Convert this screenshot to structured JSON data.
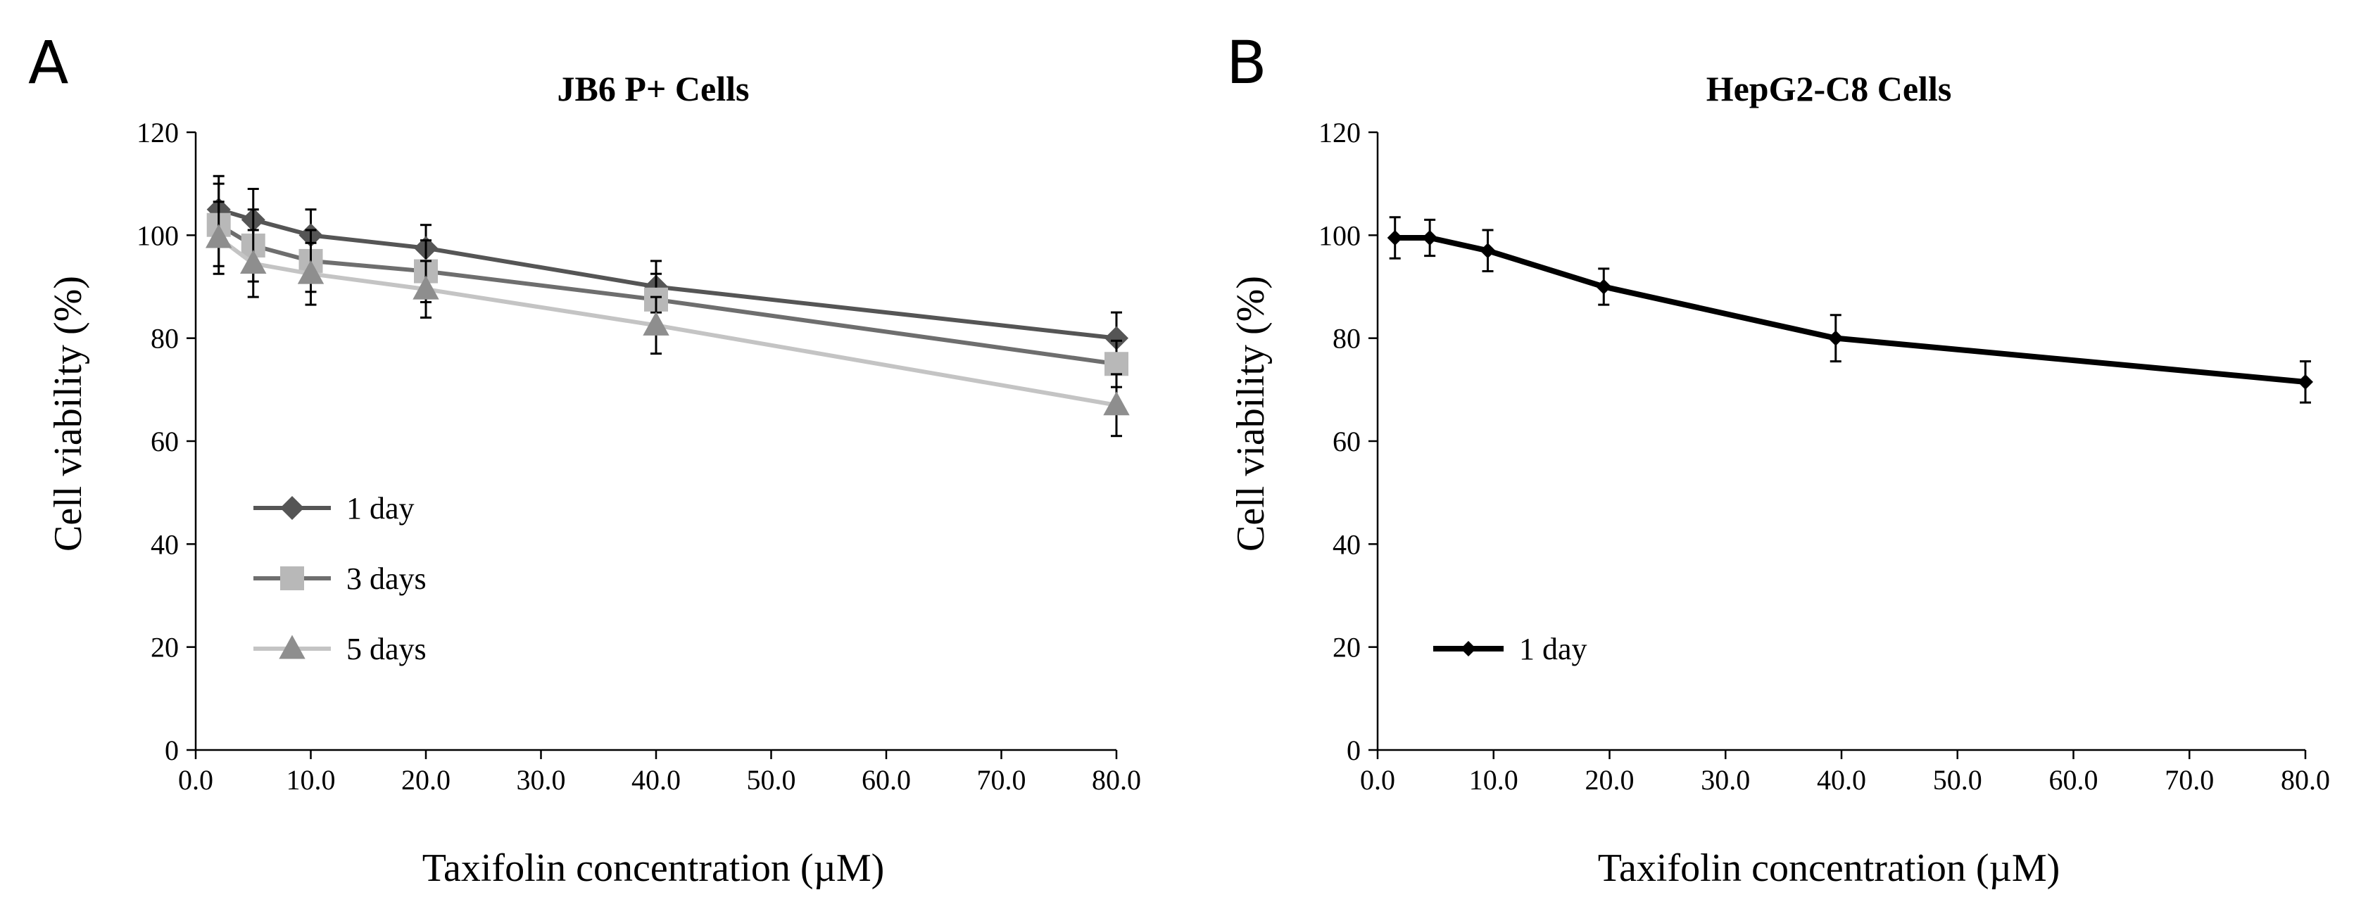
{
  "panels": [
    {
      "letter": "A"
    },
    {
      "letter": "B"
    }
  ],
  "chart_data": [
    {
      "type": "line",
      "title": "JB6 P+ Cells",
      "xlabel": "Taxifolin concentration (µM)",
      "ylabel": "Cell  viability (%)",
      "xlim": [
        0,
        80
      ],
      "ylim": [
        0,
        120
      ],
      "xticks": [
        0,
        10,
        20,
        30,
        40,
        50,
        60,
        70,
        80
      ],
      "xtick_labels": [
        "0.0",
        "10.0",
        "20.0",
        "30.0",
        "40.0",
        "50.0",
        "60.0",
        "70.0",
        "80.0"
      ],
      "yticks": [
        0,
        20,
        40,
        60,
        80,
        100,
        120
      ],
      "ytick_labels": [
        "0",
        "20",
        "40",
        "60",
        "80",
        "100",
        "120"
      ],
      "grid": false,
      "legend_position": "lower-left",
      "series": [
        {
          "name": "1 day",
          "marker": "diamond",
          "color": "#555555",
          "x": [
            2,
            5,
            10,
            20,
            40,
            80
          ],
          "y": [
            105,
            103,
            100,
            97.5,
            90,
            80
          ],
          "err": [
            6.5,
            6,
            5,
            4.5,
            5,
            5
          ]
        },
        {
          "name": "3 days",
          "marker": "square",
          "color": "#6e6e6e",
          "marker_color": "#b8b8b8",
          "x": [
            2,
            5,
            10,
            20,
            40,
            80
          ],
          "y": [
            102,
            98,
            95,
            93,
            87.5,
            75
          ],
          "err": [
            8,
            7,
            6,
            6,
            5,
            4.5
          ]
        },
        {
          "name": "5 days",
          "marker": "triangle",
          "color": "#c4c4c4",
          "marker_color": "#8e8e8e",
          "x": [
            2,
            5,
            10,
            20,
            40,
            80
          ],
          "y": [
            99.5,
            94.5,
            92.5,
            89.5,
            82.5,
            67
          ],
          "err": [
            7,
            6.5,
            6,
            5.5,
            5.5,
            6
          ]
        }
      ]
    },
    {
      "type": "line",
      "title": "HepG2-C8 Cells",
      "xlabel": "Taxifolin concentration (µM)",
      "ylabel": "Cell viability (%)",
      "xlim": [
        0,
        80
      ],
      "ylim": [
        0,
        120
      ],
      "xticks": [
        0,
        10,
        20,
        30,
        40,
        50,
        60,
        70,
        80
      ],
      "xtick_labels": [
        "0.0",
        "10.0",
        "20.0",
        "30.0",
        "40.0",
        "50.0",
        "60.0",
        "70.0",
        "80.0"
      ],
      "yticks": [
        0,
        20,
        40,
        60,
        80,
        100,
        120
      ],
      "ytick_labels": [
        "0",
        "20",
        "40",
        "60",
        "80",
        "100",
        "120"
      ],
      "grid": false,
      "legend_position": "lower-left",
      "series": [
        {
          "name": "1 day",
          "marker": "diamond",
          "color": "#000000",
          "x": [
            1.5,
            4.5,
            9.5,
            19.5,
            39.5,
            80
          ],
          "y": [
            99.5,
            99.5,
            97,
            90,
            80,
            71.5
          ],
          "err": [
            4,
            3.5,
            4,
            3.5,
            4.5,
            4
          ]
        }
      ]
    }
  ]
}
